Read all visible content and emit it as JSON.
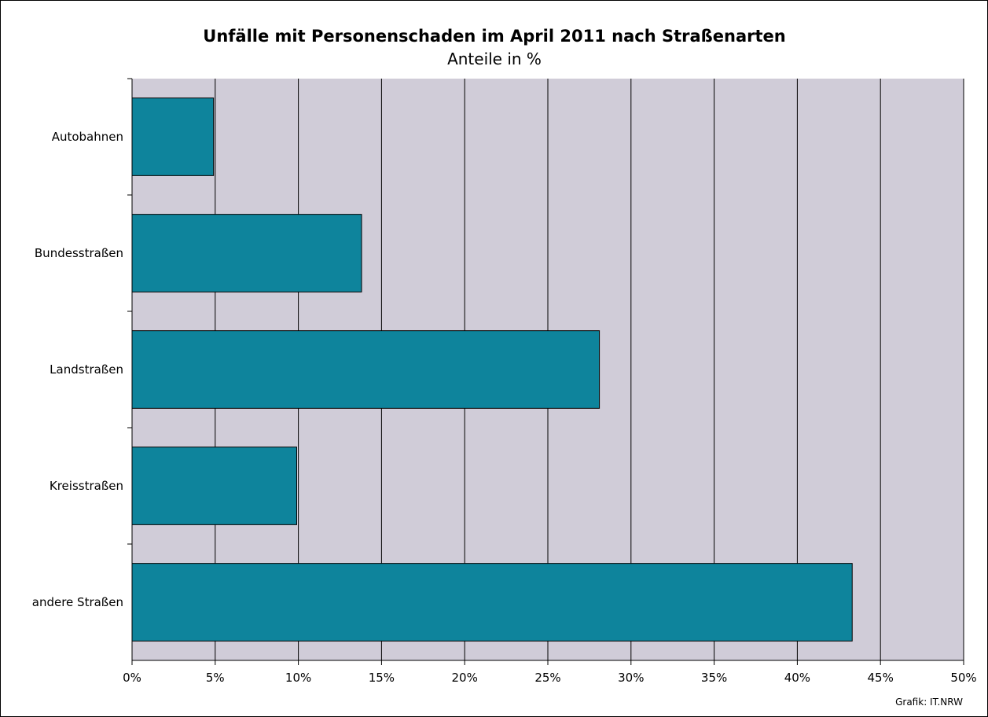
{
  "chart_data": {
    "type": "bar",
    "orientation": "horizontal",
    "title": "Unfälle mit Personenschaden im April 2011 nach Straßenarten",
    "subtitle": "Anteile in %",
    "categories": [
      "Autobahnen",
      "Bundesstraßen",
      "Landstraßen",
      "Kreisstraßen",
      "andere Straßen"
    ],
    "values": [
      4.9,
      13.8,
      28.1,
      9.9,
      43.3
    ],
    "xlim": [
      0,
      50
    ],
    "x_ticks": [
      "0%",
      "5%",
      "10%",
      "15%",
      "20%",
      "25%",
      "30%",
      "35%",
      "40%",
      "45%",
      "50%"
    ],
    "grid": "vertical",
    "legend": "none",
    "colors": {
      "bar": "#0e849c",
      "plot_background": "#d0ccd8",
      "grid": "#000000"
    },
    "credit": "Grafik: IT.NRW"
  }
}
